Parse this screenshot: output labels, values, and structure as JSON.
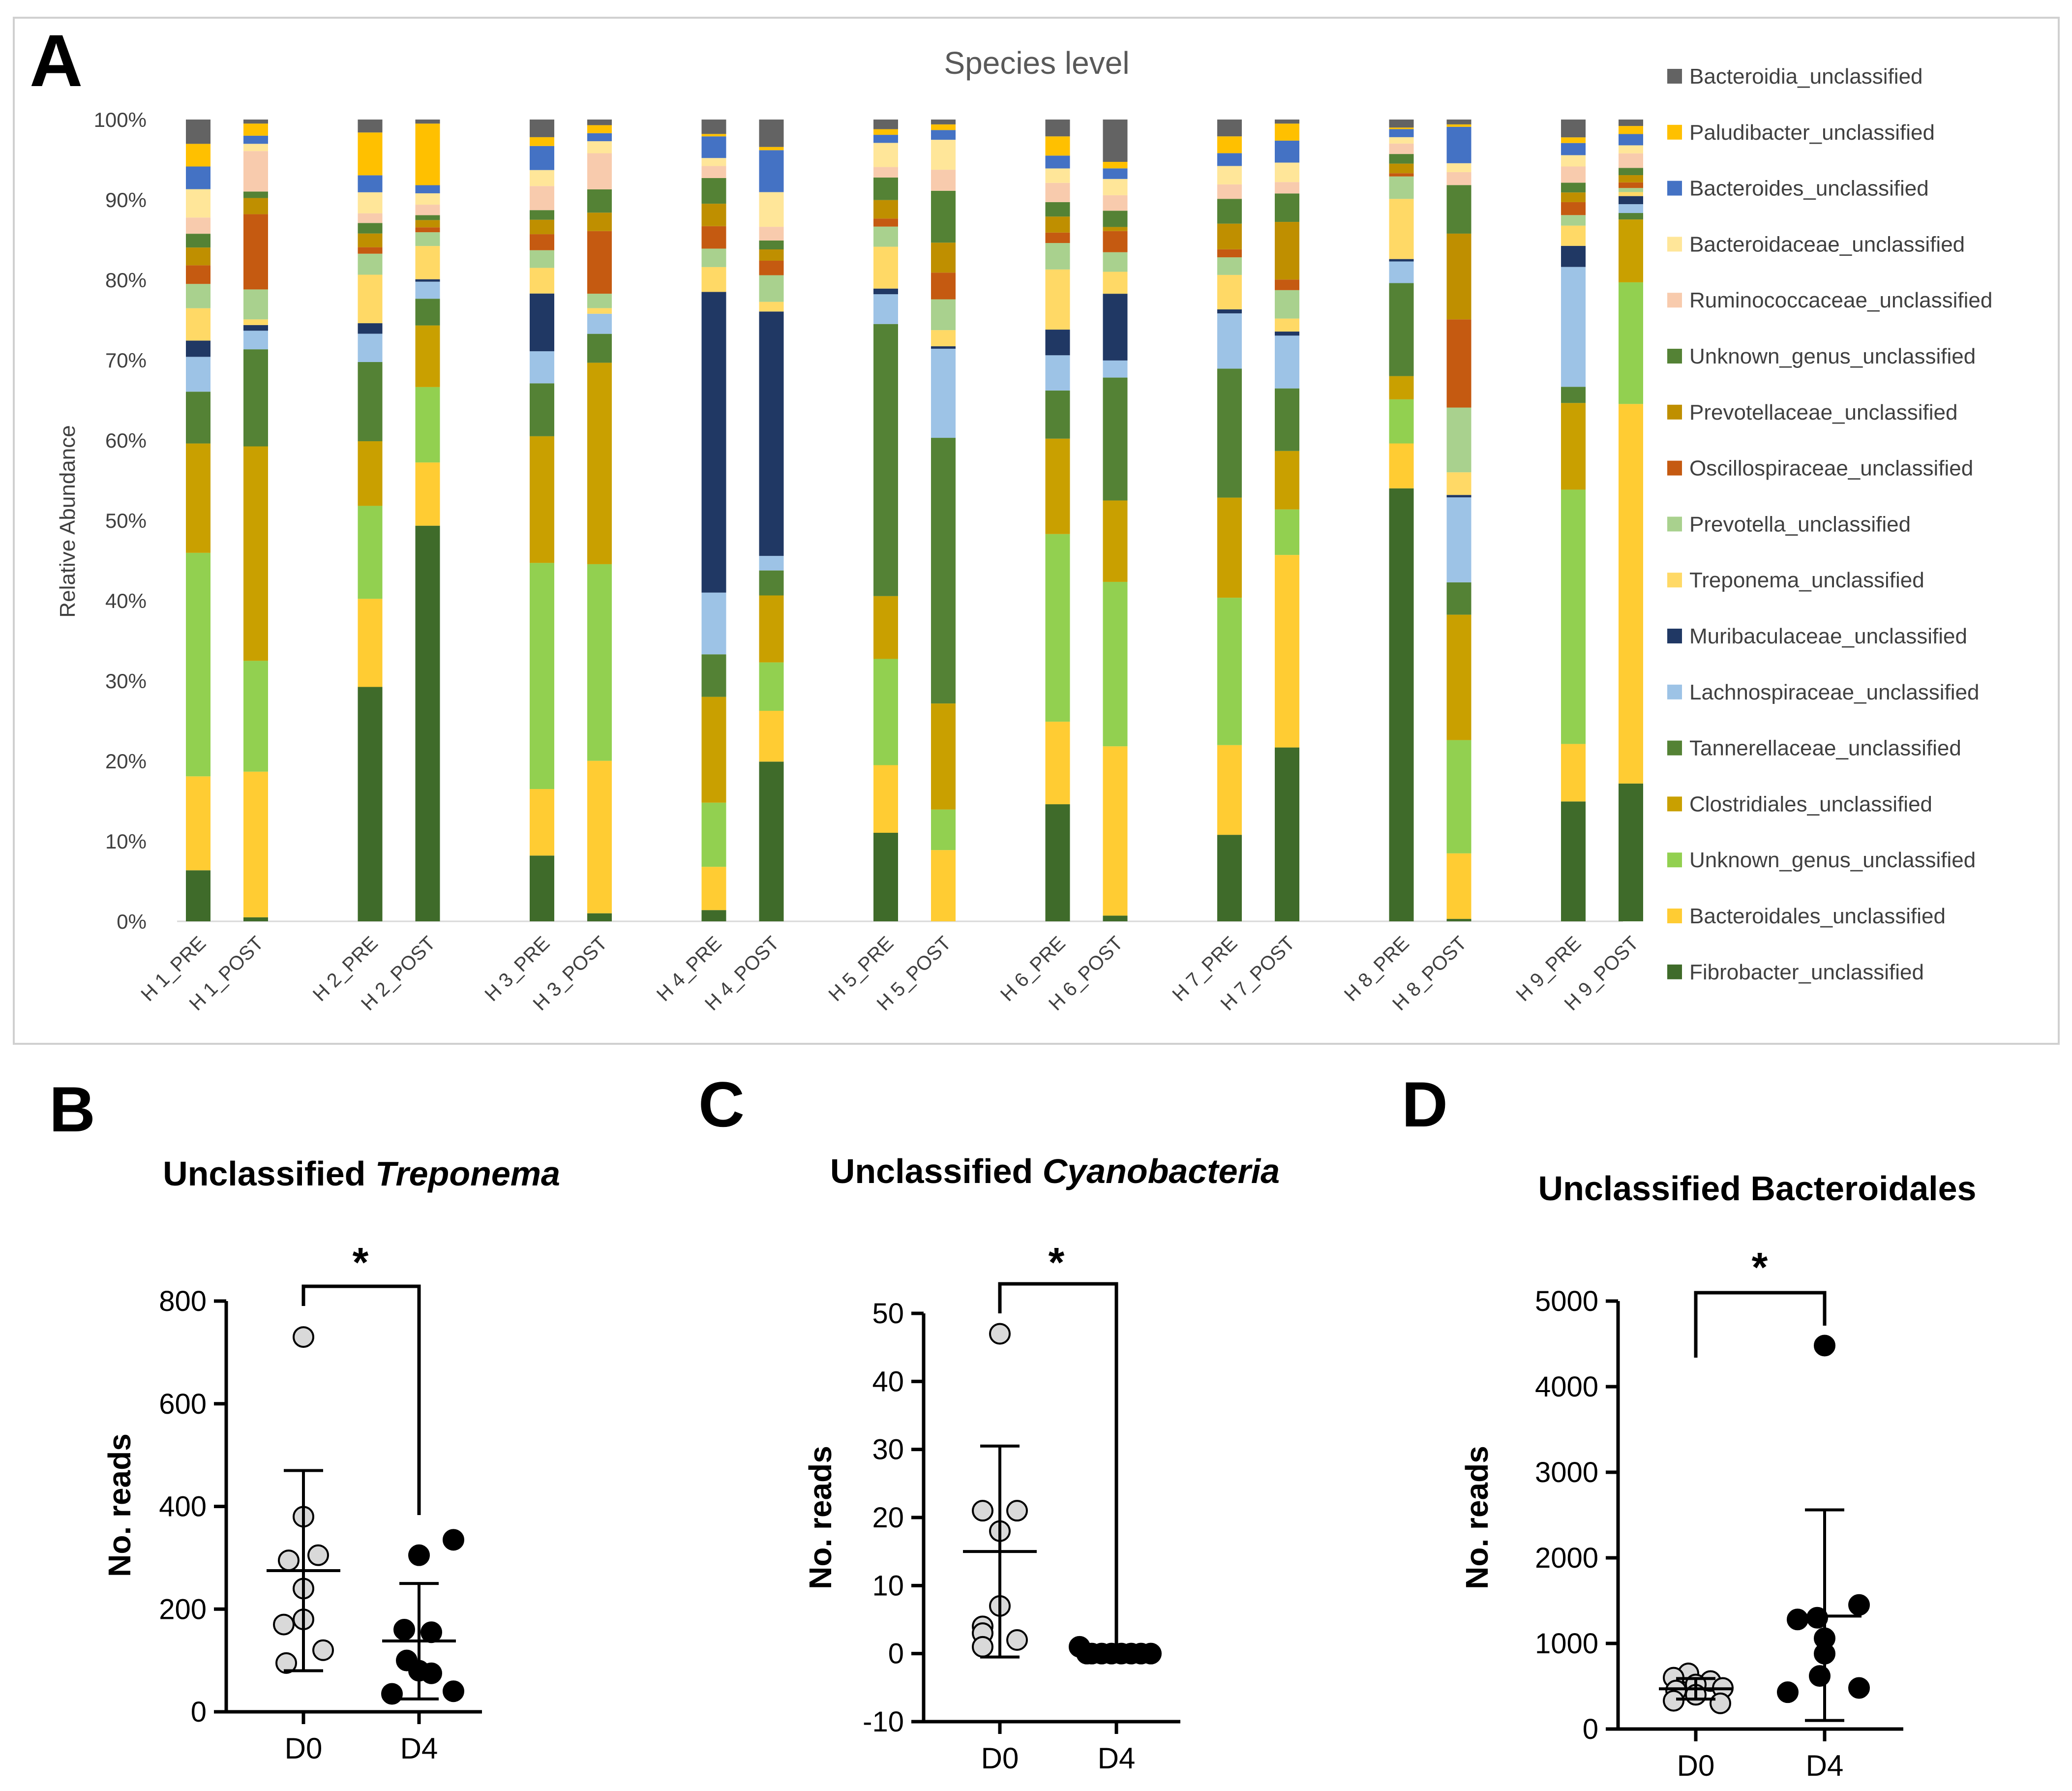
{
  "colors": {
    "Bacteroidia_unclassified": "#636363",
    "Paludibacter_unclassified": "#ffc000",
    "Bacteroides_unclassified": "#4472c4",
    "Bacteroidaceae_unclassified": "#ffe699",
    "Ruminococcaceae_unclassified": "#f8cbad",
    "Unknown_genus_unclassified_a": "#548235",
    "Prevotellaceae_unclassified": "#bf8f00",
    "Oscillospiraceae_unclassified": "#c55a11",
    "Prevotella_unclassified": "#a9d18e",
    "Treponema_unclassified": "#ffd966",
    "Muribaculaceae_unclassified": "#203864",
    "Lachnospiraceae_unclassified": "#9dc3e6",
    "Tannerellaceae_unclassified": "#548235",
    "Clostridiales_unclassified": "#c9a000",
    "Unknown_genus_unclassified_b": "#92d050",
    "Bacteroidales_unclassified": "#ffcc33",
    "Fibrobacter_unclassified": "#3f6b2a",
    "D0_marker": "#d9d9d9",
    "D4_marker": "#000000"
  },
  "panel_letters": {
    "a": "A",
    "b": "B",
    "c": "C",
    "d": "D"
  },
  "chart_data": [
    {
      "panel": "A",
      "type": "bar",
      "stacked": true,
      "title": "Species level",
      "ylabel": "Relative Abundance",
      "xlabel": "",
      "ylim": [
        0,
        100
      ],
      "y_ticks": [
        "0%",
        "10%",
        "20%",
        "30%",
        "40%",
        "50%",
        "60%",
        "70%",
        "80%",
        "90%",
        "100%"
      ],
      "legend_position": "right",
      "categories": [
        "H 1_PRE",
        "H 1_POST",
        "H 2_PRE",
        "H 2_POST",
        "H 3_PRE",
        "H 3_POST",
        "H 4_PRE",
        "H 4_POST",
        "H 5_PRE",
        "H 5_POST",
        "H 6_PRE",
        "H 6_POST",
        "H 7_PRE",
        "H 7_POST",
        "H 8_PRE",
        "H 8_POST",
        "H 9_PRE",
        "H 9_POST"
      ],
      "series": [
        {
          "name": "Fibrobacter_unclassified",
          "key": "Fibrobacter_unclassified",
          "values": [
            6.3,
            0.5,
            29.0,
            48.8,
            8.2,
            1.0,
            1.4,
            19.8,
            11.0,
            0.0,
            14.6,
            0.7,
            10.8,
            21.4,
            54.0,
            0.3,
            14.8,
            17.1
          ]
        },
        {
          "name": "Bacteroidales_unclassified",
          "key": "Bacteroidales_unclassified",
          "values": [
            11.6,
            18.0,
            10.9,
            7.8,
            8.3,
            19.0,
            5.4,
            6.3,
            8.4,
            8.8,
            10.3,
            20.8,
            11.2,
            23.7,
            5.6,
            8.1,
            7.1,
            47.1
          ]
        },
        {
          "name": "Unknown_genus_unclassified",
          "key": "Unknown_genus_unclassified_b",
          "values": [
            27.6,
            13.7,
            11.5,
            9.3,
            28.2,
            24.5,
            8.0,
            6.0,
            13.2,
            5.0,
            23.4,
            20.2,
            18.4,
            5.6,
            5.5,
            14.0,
            31.4,
            15.1
          ]
        },
        {
          "name": "Clostridiales_unclassified",
          "key": "Clostridiales_unclassified",
          "values": [
            13.5,
            26.5,
            8.0,
            7.6,
            15.8,
            25.1,
            13.2,
            8.3,
            7.8,
            13.1,
            11.9,
            10.0,
            12.5,
            7.2,
            2.9,
            15.5,
            10.7,
            7.8
          ]
        },
        {
          "name": "Tannerellaceae_unclassified",
          "key": "Tannerellaceae_unclassified",
          "values": [
            6.4,
            12.0,
            9.8,
            3.3,
            6.6,
            3.6,
            5.3,
            3.1,
            33.8,
            32.8,
            6.0,
            15.1,
            16.1,
            7.7,
            11.6,
            4.0,
            2.0,
            0.8
          ]
        },
        {
          "name": "Lachnospiraceae_unclassified",
          "key": "Lachnospiraceae_unclassified",
          "values": [
            4.3,
            2.3,
            3.5,
            2.1,
            4.0,
            2.5,
            7.7,
            1.8,
            3.7,
            11.0,
            4.4,
            2.1,
            6.9,
            6.5,
            2.7,
            10.5,
            14.8,
            1.1
          ]
        },
        {
          "name": "Muribaculaceae_unclassified",
          "key": "Muribaculaceae_unclassified",
          "values": [
            2.0,
            0.7,
            1.3,
            0.3,
            7.2,
            0.0,
            37.5,
            30.3,
            0.7,
            0.3,
            3.2,
            8.2,
            0.5,
            0.5,
            0.3,
            0.3,
            2.6,
            1.0
          ]
        },
        {
          "name": "Treponema_unclassified",
          "key": "Treponema_unclassified",
          "values": [
            4.0,
            0.7,
            6.0,
            4.1,
            3.2,
            0.7,
            3.1,
            1.2,
            5.2,
            2.0,
            7.5,
            2.7,
            4.3,
            1.6,
            7.5,
            2.8,
            2.5,
            0.5
          ]
        },
        {
          "name": "Prevotella_unclassified",
          "key": "Prevotella_unclassified",
          "values": [
            3.0,
            3.7,
            2.6,
            1.7,
            2.2,
            1.8,
            2.3,
            3.3,
            2.5,
            3.8,
            3.3,
            2.4,
            2.2,
            3.5,
            2.8,
            8.0,
            1.3,
            0.5
          ]
        },
        {
          "name": "Oscillospiraceae_unclassified",
          "key": "Oscillospiraceae_unclassified",
          "values": [
            2.3,
            9.3,
            0.8,
            0.6,
            2.0,
            7.8,
            2.8,
            1.8,
            1.0,
            3.3,
            1.3,
            2.6,
            1.0,
            1.3,
            0.4,
            10.9,
            1.6,
            0.7
          ]
        },
        {
          "name": "Prevotellaceae_unclassified",
          "key": "Prevotellaceae_unclassified",
          "values": [
            2.2,
            2.0,
            1.7,
            0.9,
            1.8,
            2.3,
            2.8,
            1.4,
            2.3,
            3.7,
            2.0,
            0.5,
            3.2,
            7.1,
            1.2,
            10.6,
            1.2,
            0.9
          ]
        },
        {
          "name": "Unknown_genus_unclassified",
          "key": "Unknown_genus_unclassified_a",
          "values": [
            1.7,
            0.8,
            1.3,
            0.6,
            1.2,
            2.9,
            3.2,
            1.1,
            2.8,
            6.4,
            1.8,
            2.0,
            3.1,
            3.5,
            1.2,
            6.0,
            1.2,
            0.9
          ]
        },
        {
          "name": "Ruminococcaceae_unclassified",
          "key": "Ruminococcaceae_unclassified",
          "values": [
            2.0,
            5.0,
            1.2,
            1.3,
            3.0,
            4.5,
            1.5,
            1.7,
            1.3,
            2.6,
            2.4,
            1.9,
            1.8,
            1.4,
            1.3,
            1.6,
            2.0,
            1.8
          ]
        },
        {
          "name": "Bacteroidaceae_unclassified",
          "key": "Bacteroidaceae_unclassified",
          "values": [
            3.5,
            0.9,
            2.6,
            1.4,
            2.0,
            1.5,
            1.0,
            4.3,
            3.0,
            3.7,
            1.8,
            2.0,
            2.3,
            2.4,
            0.8,
            1.1,
            1.4,
            1.0
          ]
        },
        {
          "name": "Bacteroides_unclassified",
          "key": "Bacteroides_unclassified",
          "values": [
            2.8,
            1.0,
            2.1,
            1.0,
            3.0,
            1.0,
            2.7,
            5.2,
            1.0,
            1.2,
            1.6,
            1.3,
            1.6,
            2.7,
            1.0,
            4.5,
            1.5,
            1.4
          ]
        },
        {
          "name": "Paludibacter_unclassified",
          "key": "Paludibacter_unclassified",
          "values": [
            2.8,
            1.5,
            5.3,
            7.6,
            1.1,
            1.0,
            0.3,
            0.4,
            0.7,
            0.7,
            2.4,
            0.8,
            2.1,
            2.1,
            0.2,
            0.3,
            0.7,
            1.0
          ]
        },
        {
          "name": "Bacteroidia_unclassified",
          "key": "Bacteroidia_unclassified",
          "values": [
            3.0,
            0.5,
            1.6,
            0.5,
            2.2,
            0.7,
            1.8,
            3.4,
            1.2,
            0.6,
            2.1,
            5.2,
            2.1,
            0.5,
            1.0,
            0.6,
            2.2,
            0.8
          ]
        }
      ],
      "legend_order": [
        {
          "name": "Bacteroidia_unclassified",
          "key": "Bacteroidia_unclassified"
        },
        {
          "name": "Paludibacter_unclassified",
          "key": "Paludibacter_unclassified"
        },
        {
          "name": "Bacteroides_unclassified",
          "key": "Bacteroides_unclassified"
        },
        {
          "name": "Bacteroidaceae_unclassified",
          "key": "Bacteroidaceae_unclassified"
        },
        {
          "name": "Ruminococcaceae_unclassified",
          "key": "Ruminococcaceae_unclassified"
        },
        {
          "name": "Unknown_genus_unclassified",
          "key": "Unknown_genus_unclassified_a"
        },
        {
          "name": "Prevotellaceae_unclassified",
          "key": "Prevotellaceae_unclassified"
        },
        {
          "name": "Oscillospiraceae_unclassified",
          "key": "Oscillospiraceae_unclassified"
        },
        {
          "name": "Prevotella_unclassified",
          "key": "Prevotella_unclassified"
        },
        {
          "name": "Treponema_unclassified",
          "key": "Treponema_unclassified"
        },
        {
          "name": "Muribaculaceae_unclassified",
          "key": "Muribaculaceae_unclassified"
        },
        {
          "name": "Lachnospiraceae_unclassified",
          "key": "Lachnospiraceae_unclassified"
        },
        {
          "name": "Tannerellaceae_unclassified",
          "key": "Tannerellaceae_unclassified"
        },
        {
          "name": "Clostridiales_unclassified",
          "key": "Clostridiales_unclassified"
        },
        {
          "name": "Unknown_genus_unclassified",
          "key": "Unknown_genus_unclassified_b"
        },
        {
          "name": "Bacteroidales_unclassified",
          "key": "Bacteroidales_unclassified"
        },
        {
          "name": "Fibrobacter_unclassified",
          "key": "Fibrobacter_unclassified"
        }
      ]
    },
    {
      "panel": "B",
      "type": "scatter",
      "title_prefix": "Unclassified ",
      "title_italic": "Treponema",
      "ylabel": "No. reads",
      "categories": [
        "D0",
        "D4"
      ],
      "ylim": [
        0,
        800
      ],
      "y_ticks": [
        0,
        200,
        400,
        600,
        800
      ],
      "significance": "*",
      "groups": [
        {
          "name": "D0",
          "values": [
            730,
            380,
            305,
            295,
            240,
            180,
            170,
            120,
            95
          ],
          "mean": 275,
          "sd_low": 80,
          "sd_high": 470
        },
        {
          "name": "D4",
          "values": [
            335,
            305,
            160,
            155,
            100,
            80,
            75,
            40,
            35
          ],
          "mean": 138,
          "sd_low": 25,
          "sd_high": 250
        }
      ]
    },
    {
      "panel": "C",
      "type": "scatter",
      "title_prefix": "Unclassified ",
      "title_italic": "Cyanobacteria",
      "ylabel": "No. reads",
      "categories": [
        "D0",
        "D4"
      ],
      "ylim": [
        -10,
        50
      ],
      "y_ticks": [
        -10,
        0,
        10,
        20,
        30,
        40,
        50
      ],
      "significance": "*",
      "groups": [
        {
          "name": "D0",
          "values": [
            47,
            21,
            21,
            18,
            7,
            4,
            3,
            2,
            1
          ],
          "mean": 15,
          "sd_low": -0.5,
          "sd_high": 30.5
        },
        {
          "name": "D4",
          "values": [
            1,
            0,
            0,
            0,
            0,
            0,
            0,
            0,
            0
          ],
          "mean": 0.1,
          "sd_low": 0,
          "sd_high": 0.3
        }
      ]
    },
    {
      "panel": "D",
      "type": "scatter",
      "title_prefix": "Unclassified Bacteroidales",
      "title_italic": "",
      "ylabel": "No. reads",
      "categories": [
        "D0",
        "D4"
      ],
      "ylim": [
        0,
        5000
      ],
      "y_ticks": [
        0,
        1000,
        2000,
        3000,
        4000,
        5000
      ],
      "significance": "*",
      "groups": [
        {
          "name": "D0",
          "values": [
            650,
            600,
            560,
            520,
            480,
            450,
            400,
            330,
            300
          ],
          "mean": 470,
          "sd_low": 350,
          "sd_high": 590
        },
        {
          "name": "D4",
          "values": [
            4480,
            1450,
            1300,
            1280,
            1060,
            880,
            620,
            480,
            430
          ],
          "mean": 1320,
          "sd_low": 100,
          "sd_high": 2560
        }
      ]
    }
  ]
}
